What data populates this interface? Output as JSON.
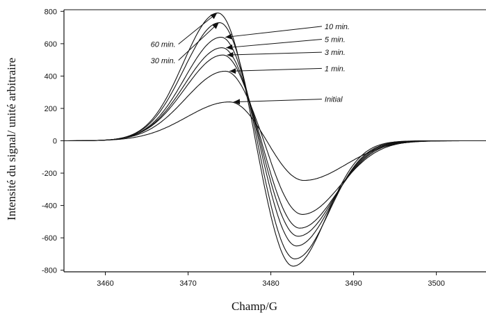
{
  "chart_data": {
    "type": "line",
    "xlabel": "Champ/G",
    "ylabel": "Intensité du signal/ unité arbitraire",
    "xlim": [
      3455,
      3506
    ],
    "ylim": [
      -810,
      810
    ],
    "x_ticks": [
      3460,
      3470,
      3480,
      3490,
      3500
    ],
    "y_ticks": [
      800,
      600,
      400,
      200,
      0,
      -200,
      -400,
      -600,
      -800
    ],
    "grid": false,
    "legend": "none",
    "line_color": "#111111",
    "series": [
      {
        "name": "Initial",
        "peak_x": 3475.0,
        "peak": 240,
        "trough_x": 3484.0,
        "trough": -245,
        "sigma_left": 5.2,
        "sigma_right": 5.0
      },
      {
        "name": "1 min.",
        "peak_x": 3474.5,
        "peak": 430,
        "trough_x": 3483.8,
        "trough": -455,
        "sigma_left": 4.8,
        "sigma_right": 4.6
      },
      {
        "name": "3 min.",
        "peak_x": 3474.2,
        "peak": 530,
        "trough_x": 3483.5,
        "trough": -540,
        "sigma_left": 4.6,
        "sigma_right": 4.4
      },
      {
        "name": "5 min.",
        "peak_x": 3474.1,
        "peak": 575,
        "trough_x": 3483.3,
        "trough": -590,
        "sigma_left": 4.5,
        "sigma_right": 4.3
      },
      {
        "name": "10 min.",
        "peak_x": 3474.0,
        "peak": 640,
        "trough_x": 3483.1,
        "trough": -650,
        "sigma_left": 4.4,
        "sigma_right": 4.2
      },
      {
        "name": "30 min.",
        "peak_x": 3473.8,
        "peak": 730,
        "trough_x": 3482.9,
        "trough": -730,
        "sigma_left": 4.3,
        "sigma_right": 4.1
      },
      {
        "name": "60 min.",
        "peak_x": 3473.6,
        "peak": 790,
        "trough_x": 3482.7,
        "trough": -775,
        "sigma_left": 4.2,
        "sigma_right": 4.0
      }
    ],
    "annotations": [
      {
        "text": "10 min.",
        "series": "10 min.",
        "side": "right",
        "label_x": 3486.5,
        "label_y": 690
      },
      {
        "text": "5 min.",
        "series": "5 min.",
        "side": "right",
        "label_x": 3486.5,
        "label_y": 610
      },
      {
        "text": "3 min.",
        "series": "3 min.",
        "side": "right",
        "label_x": 3486.5,
        "label_y": 530
      },
      {
        "text": "1 min.",
        "series": "1 min.",
        "side": "right",
        "label_x": 3486.5,
        "label_y": 430
      },
      {
        "text": "Initial",
        "series": "Initial",
        "side": "right",
        "label_x": 3486.5,
        "label_y": 240
      },
      {
        "text": "60 min.",
        "series": "60 min.",
        "side": "left",
        "label_x": 3468.5,
        "label_y": 580
      },
      {
        "text": "30 min.",
        "series": "30 min.",
        "side": "left",
        "label_x": 3468.5,
        "label_y": 480
      }
    ]
  }
}
